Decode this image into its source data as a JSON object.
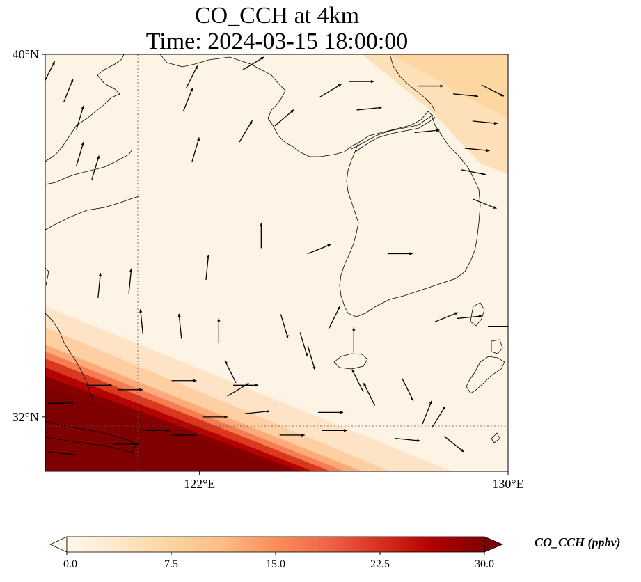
{
  "title": {
    "line1": "CO_CCH at 4km",
    "line2": "Time: 2024-03-15 18:00:00"
  },
  "map": {
    "lon_range": [
      118,
      130
    ],
    "lat_range": [
      30.8,
      40
    ],
    "lat_ticks": [
      {
        "value": 40,
        "label": "40°N"
      },
      {
        "value": 32,
        "label": "32°N"
      }
    ],
    "lon_ticks": [
      {
        "value": 122,
        "label": "122°E"
      },
      {
        "value": 130,
        "label": "130°E"
      }
    ],
    "gridlines": {
      "lons": [
        122
      ],
      "lats": [
        32
      ],
      "style": "dotted"
    }
  },
  "colorbar": {
    "label": "CO_CCH (ppbv)",
    "min": 0,
    "max": 30,
    "ticks": [
      "0.0",
      "7.5",
      "15.0",
      "22.5",
      "30.0"
    ],
    "extend": "both",
    "colormap": "OrRd",
    "colors": [
      "#fff7ec",
      "#fee8c8",
      "#fdd49e",
      "#fdbb84",
      "#fc8d59",
      "#ef6548",
      "#d7301f",
      "#b30000",
      "#7f0000"
    ]
  },
  "chart_data": {
    "type": "heatmap",
    "title": "CO_CCH at 4km\nTime: 2024-03-15 18:00:00",
    "variable": "CO_CCH",
    "units": "ppbv",
    "field_description_values": {
      "background_min": 0.5,
      "northeast_patch_max": 8,
      "southwest_plume_max": 30
    },
    "wind_vectors": [
      {
        "lon": 118.1,
        "lat": 39.6,
        "u": 0.5,
        "v": 1.0
      },
      {
        "lon": 118.6,
        "lat": 39.2,
        "u": 0.4,
        "v": 1.0
      },
      {
        "lon": 118.9,
        "lat": 38.6,
        "u": 0.3,
        "v": 1.0
      },
      {
        "lon": 118.9,
        "lat": 37.8,
        "u": 0.3,
        "v": 1.0
      },
      {
        "lon": 119.3,
        "lat": 37.5,
        "u": 0.3,
        "v": 1.0
      },
      {
        "lon": 121.8,
        "lat": 39.5,
        "u": 0.5,
        "v": 1.0
      },
      {
        "lon": 121.7,
        "lat": 39.0,
        "u": 0.4,
        "v": 1.0
      },
      {
        "lon": 121.9,
        "lat": 37.9,
        "u": 0.3,
        "v": 1.0
      },
      {
        "lon": 123.2,
        "lat": 38.3,
        "u": 0.6,
        "v": 1.0
      },
      {
        "lon": 124.2,
        "lat": 38.6,
        "u": 0.7,
        "v": 0.6
      },
      {
        "lon": 123.4,
        "lat": 39.8,
        "u": 1.0,
        "v": 0.6
      },
      {
        "lon": 125.4,
        "lat": 39.2,
        "u": 1.0,
        "v": 0.6
      },
      {
        "lon": 126.2,
        "lat": 39.4,
        "u": 1.0,
        "v": 0.0
      },
      {
        "lon": 126.4,
        "lat": 38.8,
        "u": 1.0,
        "v": 0.1
      },
      {
        "lon": 128.0,
        "lat": 39.3,
        "u": 1.0,
        "v": 0.0
      },
      {
        "lon": 128.9,
        "lat": 39.1,
        "u": 1.0,
        "v": -0.1
      },
      {
        "lon": 129.6,
        "lat": 39.2,
        "u": 1.0,
        "v": -0.5
      },
      {
        "lon": 129.4,
        "lat": 38.5,
        "u": 1.0,
        "v": -0.1
      },
      {
        "lon": 127.9,
        "lat": 38.3,
        "u": 1.0,
        "v": 0.1
      },
      {
        "lon": 129.1,
        "lat": 37.4,
        "u": 1.0,
        "v": -0.2
      },
      {
        "lon": 129.4,
        "lat": 36.7,
        "u": 1.0,
        "v": -0.4
      },
      {
        "lon": 129.2,
        "lat": 37.9,
        "u": 1.0,
        "v": -0.1
      },
      {
        "lon": 123.6,
        "lat": 36.0,
        "u": 0.0,
        "v": 1.0
      },
      {
        "lon": 122.2,
        "lat": 35.3,
        "u": 0.1,
        "v": 1.0
      },
      {
        "lon": 120.2,
        "lat": 35.0,
        "u": 0.1,
        "v": 1.0
      },
      {
        "lon": 119.4,
        "lat": 34.9,
        "u": 0.1,
        "v": 1.0
      },
      {
        "lon": 120.5,
        "lat": 34.1,
        "u": -0.1,
        "v": 1.0
      },
      {
        "lon": 121.5,
        "lat": 34.0,
        "u": -0.1,
        "v": 1.0
      },
      {
        "lon": 122.5,
        "lat": 33.9,
        "u": 0.0,
        "v": 1.0
      },
      {
        "lon": 122.8,
        "lat": 33.0,
        "u": -0.5,
        "v": 1.0
      },
      {
        "lon": 123.0,
        "lat": 32.6,
        "u": 0.5,
        "v": 0.3
      },
      {
        "lon": 122.4,
        "lat": 32.0,
        "u": 1.0,
        "v": 0.0
      },
      {
        "lon": 123.5,
        "lat": 32.1,
        "u": 1.0,
        "v": 0.1
      },
      {
        "lon": 124.4,
        "lat": 31.6,
        "u": 1.0,
        "v": 0.0
      },
      {
        "lon": 125.5,
        "lat": 31.7,
        "u": 1.0,
        "v": 0.0
      },
      {
        "lon": 127.4,
        "lat": 31.5,
        "u": 1.0,
        "v": -0.1
      },
      {
        "lon": 118.4,
        "lat": 31.2,
        "u": 1.0,
        "v": -0.1
      },
      {
        "lon": 120.1,
        "lat": 31.4,
        "u": 1.0,
        "v": 0.0
      },
      {
        "lon": 120.9,
        "lat": 31.7,
        "u": 1.0,
        "v": 0.0
      },
      {
        "lon": 121.6,
        "lat": 31.6,
        "u": 1.0,
        "v": 0.0
      },
      {
        "lon": 118.4,
        "lat": 32.3,
        "u": 1.0,
        "v": 0.0
      },
      {
        "lon": 119.4,
        "lat": 32.7,
        "u": 1.0,
        "v": 0.0
      },
      {
        "lon": 120.2,
        "lat": 32.6,
        "u": 1.0,
        "v": 0.0
      },
      {
        "lon": 121.6,
        "lat": 32.8,
        "u": 1.0,
        "v": 0.0
      },
      {
        "lon": 123.2,
        "lat": 32.7,
        "u": 1.0,
        "v": 0.0
      },
      {
        "lon": 125.4,
        "lat": 32.1,
        "u": 1.0,
        "v": 0.0
      },
      {
        "lon": 126.1,
        "lat": 32.8,
        "u": -0.5,
        "v": 1.0
      },
      {
        "lon": 126.4,
        "lat": 32.5,
        "u": -0.5,
        "v": 1.0
      },
      {
        "lon": 127.4,
        "lat": 32.6,
        "u": 0.5,
        "v": -1.0
      },
      {
        "lon": 127.9,
        "lat": 32.1,
        "u": 0.4,
        "v": 1.0
      },
      {
        "lon": 128.2,
        "lat": 32.0,
        "u": 0.5,
        "v": 0.8
      },
      {
        "lon": 128.6,
        "lat": 31.4,
        "u": 1.0,
        "v": -0.8
      },
      {
        "lon": 128.4,
        "lat": 34.2,
        "u": 1.0,
        "v": 0.4
      },
      {
        "lon": 129.0,
        "lat": 34.2,
        "u": 1.0,
        "v": 0.1
      },
      {
        "lon": 129.8,
        "lat": 34.0,
        "u": 1.0,
        "v": 0.0
      },
      {
        "lon": 127.2,
        "lat": 35.6,
        "u": 1.0,
        "v": 0.0
      },
      {
        "lon": 125.1,
        "lat": 35.7,
        "u": 0.5,
        "v": 0.2
      },
      {
        "lon": 126.0,
        "lat": 33.7,
        "u": 0.0,
        "v": 1.0
      },
      {
        "lon": 125.5,
        "lat": 34.2,
        "u": 0.5,
        "v": 1.0
      },
      {
        "lon": 124.9,
        "lat": 33.3,
        "u": 0.3,
        "v": -1.0
      },
      {
        "lon": 124.7,
        "lat": 33.6,
        "u": 0.3,
        "v": -1.0
      },
      {
        "lon": 124.2,
        "lat": 34.0,
        "u": 0.3,
        "v": -1.0
      }
    ]
  }
}
